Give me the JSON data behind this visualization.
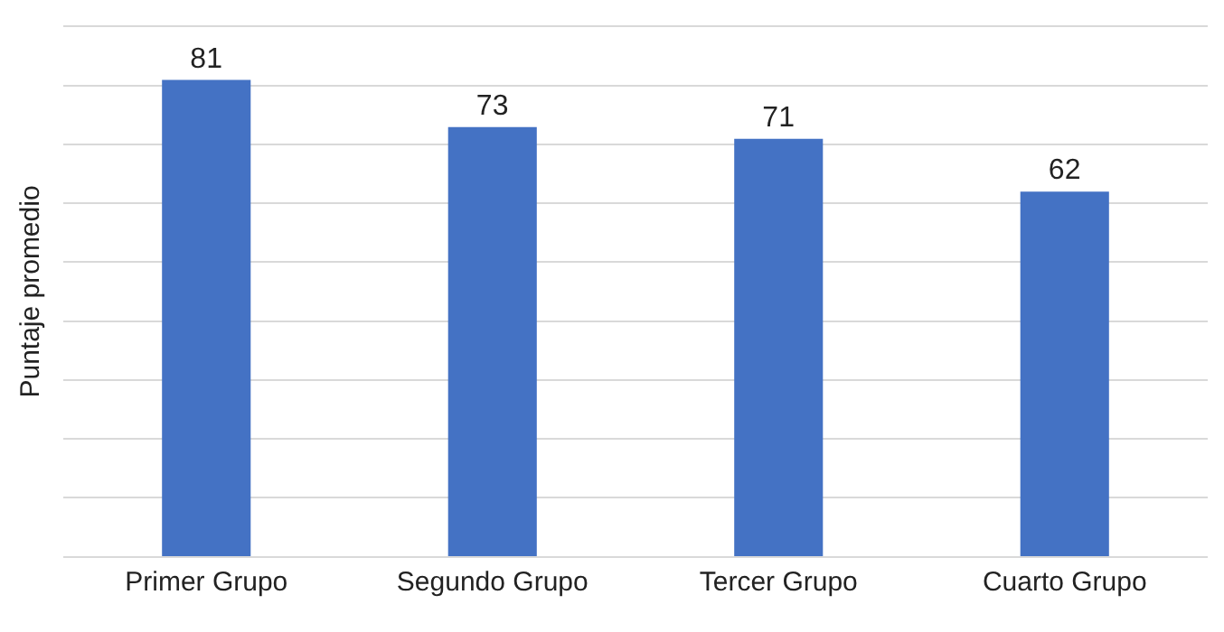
{
  "chart_data": {
    "type": "bar",
    "ylabel": "Puntaje promedio",
    "categories": [
      "Primer Grupo",
      "Segundo Grupo",
      "Tercer Grupo",
      "Cuarto Grupo"
    ],
    "values": [
      81,
      73,
      71,
      62
    ],
    "color": "#4472c4",
    "ylim": [
      0,
      90
    ],
    "yticks": [
      {
        "value": 0,
        "label": null
      },
      {
        "value": 10,
        "label": null
      },
      {
        "value": 20,
        "label": null
      },
      {
        "value": 30,
        "label": null
      },
      {
        "value": 40,
        "label": null
      },
      {
        "value": 50,
        "label": null
      },
      {
        "value": 60,
        "label": null
      },
      {
        "value": 70,
        "label": null
      },
      {
        "value": 80,
        "label": null
      },
      {
        "value": 90,
        "label": null
      }
    ],
    "grid": "y",
    "data_labels": true,
    "tick_labels": "x",
    "legend": false
  }
}
